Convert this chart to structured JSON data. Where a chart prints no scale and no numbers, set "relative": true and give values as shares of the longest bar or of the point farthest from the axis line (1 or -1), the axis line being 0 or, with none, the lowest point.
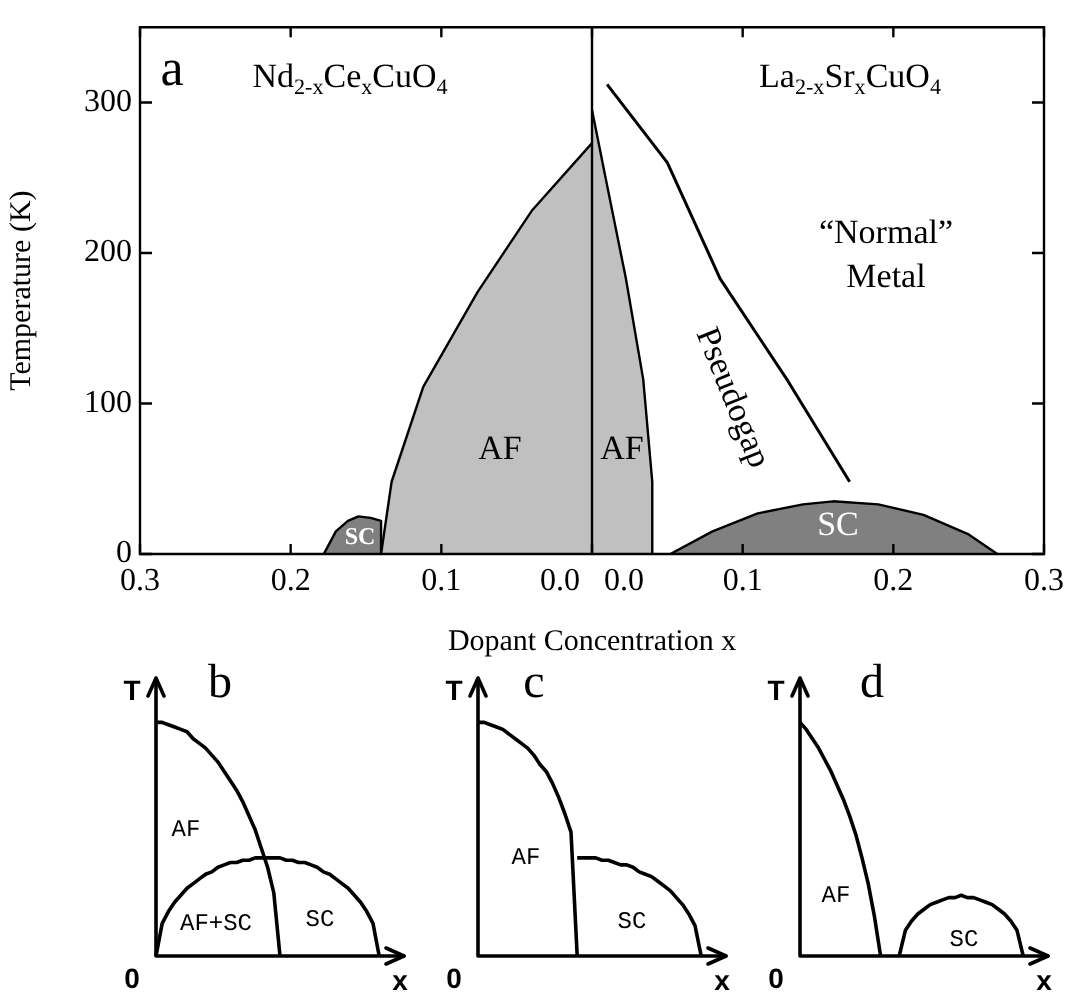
{
  "chart_data": [
    {
      "type": "area",
      "title": "a",
      "xlabel": "Dopant Concentration x",
      "ylabel": "Temperature (K)",
      "xlim": [
        -0.3,
        0.3
      ],
      "ylim": [
        0,
        350
      ],
      "xticks": [
        {
          "value": -0.3,
          "label": "0.3"
        },
        {
          "value": -0.2,
          "label": "0.2"
        },
        {
          "value": -0.1,
          "label": "0.1"
        },
        {
          "value": 0,
          "label": "0.0   0.0"
        },
        0.1,
        0.2,
        {
          "value": 0.3,
          "label": "0.3"
        }
      ],
      "yticks": [
        0,
        100,
        200,
        300
      ],
      "series": [
        {
          "type": "area",
          "color": "#c0c0c0",
          "x": [
            -0.14,
            -0.133,
            -0.112,
            -0.076,
            -0.04,
            0
          ],
          "values": [
            0,
            48,
            111,
            174,
            228,
            273
          ]
        },
        {
          "type": "area",
          "color": "#c0c0c0",
          "x": [
            0,
            0.003,
            0.009,
            0.0225,
            0.034,
            0.04,
            0.04
          ],
          "values": [
            295,
            280,
            250,
            183,
            116,
            48,
            0
          ]
        },
        {
          "type": "area",
          "color": "#808080",
          "x": [
            -0.178,
            -0.17,
            -0.162,
            -0.155,
            -0.147,
            -0.14,
            -0.14
          ],
          "values": [
            0,
            15,
            22,
            25,
            24,
            22,
            0
          ]
        },
        {
          "type": "area",
          "color": "#808080",
          "x": [
            0.052,
            0.08,
            0.11,
            0.14,
            0.16,
            0.19,
            0.22,
            0.25,
            0.269
          ],
          "values": [
            0,
            15,
            27,
            33,
            35,
            33,
            26,
            13,
            0
          ]
        },
        {
          "type": "line",
          "color": "#000000",
          "x": [
            0.01,
            0.05,
            0.085,
            0.13,
            0.171
          ],
          "values": [
            312,
            260,
            183,
            115,
            48
          ]
        }
      ],
      "ref_lines": [
        {
          "axis": "x",
          "value": 0,
          "color": "#000000"
        }
      ],
      "annotations": [
        "Nd$_{2-x}$Ce$_{x}$CuO$_{4}$",
        "La$_{2-x}$Sr$_{x}$CuO$_{4}$",
        "AF",
        "AF",
        "Pseudogap",
        "“Normal”",
        "Metal",
        "SC",
        "SC"
      ]
    },
    {
      "type": "line",
      "title": "b",
      "xlabel": "x",
      "ylabel": "T",
      "relative": true,
      "categories": [
        null,
        null,
        null,
        null,
        null,
        null,
        null,
        null,
        null,
        null,
        null,
        null,
        null,
        null,
        null,
        null,
        null,
        null,
        null,
        null,
        null,
        null,
        null,
        null,
        null,
        null,
        null,
        null,
        null,
        null,
        null,
        null,
        null,
        null,
        null,
        null,
        null,
        null,
        null,
        null,
        null
      ],
      "series": [
        {
          "color": "#000000",
          "values": [
            1,
            1,
            0.99,
            0.98,
            0.97,
            0.96,
            0.93,
            0.91,
            0.89,
            0.86,
            0.83,
            0.79,
            0.75,
            0.71,
            0.66,
            0.6,
            0.54,
            0.46,
            0.38,
            0.27,
            0,
            null,
            null,
            null,
            null,
            null,
            null,
            null,
            null,
            null,
            null,
            null,
            null,
            null,
            null,
            null,
            null,
            null,
            null,
            null,
            null
          ]
        },
        {
          "color": "#000000",
          "values": [
            0,
            0.14,
            0.19,
            0.23,
            0.26,
            0.29,
            0.31,
            0.33,
            0.35,
            0.36,
            0.38,
            0.39,
            0.4,
            0.4,
            0.41,
            0.41,
            0.42,
            0.42,
            0.42,
            0.42,
            0.42,
            0.41,
            0.41,
            0.4,
            0.4,
            0.39,
            0.38,
            0.36,
            0.35,
            0.33,
            0.31,
            0.29,
            0.26,
            0.23,
            0.19,
            0.14,
            0,
            null,
            null,
            null,
            null
          ]
        }
      ],
      "annotations": [
        "0",
        "AF",
        "AF+SC",
        "SC"
      ]
    },
    {
      "type": "line",
      "title": "c",
      "xlabel": "x",
      "ylabel": "T",
      "relative": true,
      "categories": [
        null,
        null,
        null,
        null,
        null,
        null,
        null,
        null,
        null,
        null,
        null,
        null,
        null,
        null,
        null,
        null,
        null,
        null,
        null,
        null,
        null,
        null,
        null,
        null,
        null,
        null,
        null,
        null,
        null,
        null,
        null,
        null,
        null,
        null,
        null,
        null,
        null,
        null,
        null,
        null,
        null
      ],
      "series": [
        {
          "color": "#000000",
          "values": [
            1,
            1,
            0.99,
            0.98,
            0.97,
            0.95,
            0.93,
            0.91,
            0.89,
            0.86,
            0.82,
            0.79,
            0.74,
            0.68,
            0.61,
            0.53,
            0,
            null,
            null,
            null,
            null,
            null,
            null,
            null,
            null,
            null,
            null,
            null,
            null,
            null,
            null,
            null,
            null,
            null,
            null,
            null,
            null,
            null,
            null,
            null,
            null
          ]
        },
        {
          "color": "#000000",
          "values": [
            null,
            null,
            null,
            null,
            null,
            null,
            null,
            null,
            null,
            null,
            null,
            null,
            null,
            null,
            null,
            null,
            0.42,
            0.42,
            0.42,
            0.42,
            0.41,
            0.41,
            0.4,
            0.39,
            0.39,
            0.38,
            0.36,
            0.35,
            0.34,
            0.32,
            0.3,
            0.28,
            0.25,
            0.22,
            0.18,
            0.13,
            0,
            null,
            null,
            null,
            null
          ]
        }
      ],
      "annotations": [
        "0",
        "AF",
        "SC"
      ]
    },
    {
      "type": "line",
      "title": "d",
      "xlabel": "x",
      "ylabel": "T",
      "relative": true,
      "categories": [
        null,
        null,
        null,
        null,
        null,
        null,
        null,
        null,
        null,
        null,
        null,
        null,
        null,
        null,
        null,
        null,
        null,
        null,
        null,
        null,
        null,
        null,
        null,
        null,
        null,
        null,
        null,
        null,
        null,
        null,
        null,
        null,
        null,
        null,
        null,
        null,
        null,
        null,
        null,
        null,
        null
      ],
      "series": [
        {
          "color": "#000000",
          "values": [
            1,
            0.97,
            0.93,
            0.89,
            0.84,
            0.79,
            0.73,
            0.67,
            0.6,
            0.52,
            0.42,
            0.31,
            0.17,
            0,
            null,
            null,
            null,
            null,
            null,
            null,
            null,
            null,
            null,
            null,
            null,
            null,
            null,
            null,
            null,
            null,
            null,
            null,
            null,
            null,
            null,
            null,
            null,
            null,
            null,
            null,
            null
          ]
        },
        {
          "color": "#000000",
          "values": [
            null,
            null,
            null,
            null,
            null,
            null,
            null,
            null,
            null,
            null,
            null,
            null,
            null,
            null,
            null,
            null,
            0,
            0.11,
            0.15,
            0.18,
            0.2,
            0.22,
            0.23,
            0.24,
            0.25,
            0.25,
            0.26,
            0.25,
            0.25,
            0.24,
            0.23,
            0.22,
            0.2,
            0.18,
            0.15,
            0.11,
            0,
            null,
            null,
            null,
            null
          ]
        }
      ],
      "annotations": [
        "0",
        "AF",
        "SC"
      ]
    }
  ]
}
